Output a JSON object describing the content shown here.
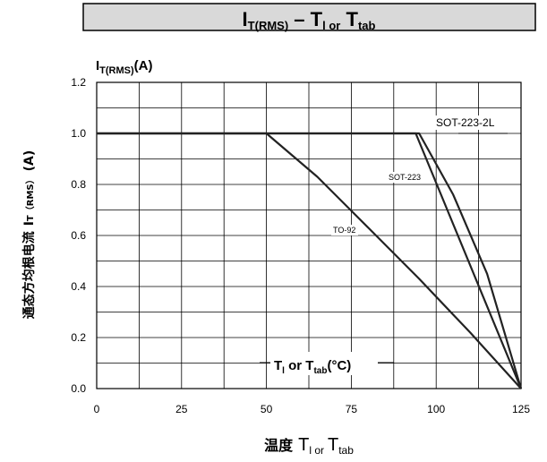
{
  "chart_data": {
    "type": "line",
    "title": {
      "main": "I",
      "main_sub": "T(RMS)",
      "dash": "–",
      "t1": "T",
      "t1_sub": "l or",
      "t2": "T",
      "t2_sub": "tab"
    },
    "y_unit_label": {
      "main": "I",
      "sub": "T(RMS)",
      "unit": "(A)"
    },
    "ylabel": {
      "cn": "通态方均根电流",
      "main": "I",
      "sub": "T（RMS）",
      "unit": "(A)"
    },
    "xlabel": {
      "cn": "温度",
      "t1": "T",
      "t1_sub": "l or",
      "t2": "T",
      "t2_sub": "tab"
    },
    "inner_label": {
      "t1": "T",
      "t1_sub": "l",
      "mid": " or T",
      "t2_sub": "tab",
      "unit": "(°C)"
    },
    "xlim": [
      0,
      125
    ],
    "ylim": [
      0,
      1.2
    ],
    "x_ticks": [
      0,
      25,
      50,
      75,
      100,
      125
    ],
    "y_ticks": [
      0.0,
      0.2,
      0.4,
      0.6,
      0.8,
      1.0,
      1.2
    ],
    "y_tick_labels": [
      "0.0",
      "0.2",
      "0.4",
      "0.6",
      "0.8",
      "1.0",
      "1.2"
    ],
    "x_minor_grid_step": 12.5,
    "y_minor_grid_step": 0.1,
    "grid": true,
    "series": [
      {
        "name": "SOT-223-2L",
        "x": [
          0,
          94,
          125
        ],
        "y": [
          1.0,
          1.0,
          0.0
        ]
      },
      {
        "name": "SOT-223",
        "x": [
          0,
          95,
          105,
          115,
          125
        ],
        "y": [
          1.0,
          1.0,
          0.76,
          0.45,
          0.0
        ]
      },
      {
        "name": "TO-92",
        "x": [
          0,
          50,
          65,
          80,
          95,
          110,
          125
        ],
        "y": [
          1.0,
          1.0,
          0.83,
          0.63,
          0.43,
          0.22,
          0.0
        ]
      }
    ]
  }
}
